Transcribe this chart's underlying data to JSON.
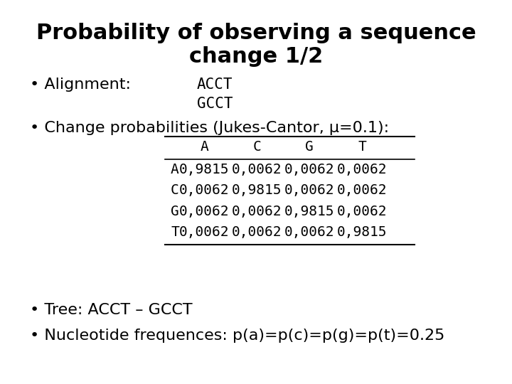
{
  "title_line1": "Probability of observing a sequence",
  "title_line2": "change 1/2",
  "bullet1_label": "Alignment:",
  "bullet1_seq1": "ACCT",
  "bullet1_seq2": "GCCT",
  "bullet2_label": "Change probabilities (Jukes-Cantor, μ=0.1):",
  "table_col_headers": [
    "A",
    "C",
    "G",
    "T"
  ],
  "table_row_headers": [
    "A",
    "C",
    "G",
    "T"
  ],
  "table_data": [
    [
      "0,9815",
      "0,0062",
      "0,0062",
      "0,0062"
    ],
    [
      "0,0062",
      "0,9815",
      "0,0062",
      "0,0062"
    ],
    [
      "0,0062",
      "0,0062",
      "0,9815",
      "0,0062"
    ],
    [
      "0,0062",
      "0,0062",
      "0,0062",
      "0,9815"
    ]
  ],
  "bullet3": "Tree: ACCT – GCCT",
  "bullet4": "Nucleotide frequences: p(a)=p(c)=p(g)=p(t)=0.25",
  "bg_color": "#ffffff",
  "text_color": "#000000",
  "title_fontsize": 22,
  "body_fontsize": 16,
  "mono_fontsize": 15,
  "table_fontsize": 14
}
